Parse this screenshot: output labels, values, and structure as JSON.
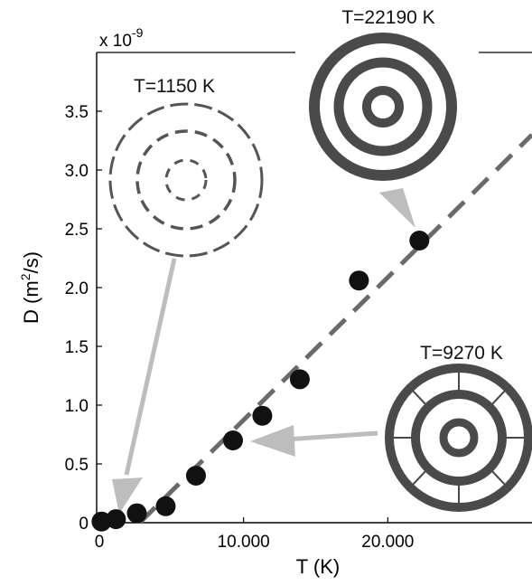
{
  "chart_data": {
    "type": "scatter",
    "xlabel": "T (K)",
    "ylabel_main": "D (m",
    "ylabel_sup": "2",
    "ylabel_tail": "/s)",
    "xlim": [
      0,
      30000
    ],
    "ylim": [
      0,
      4.0
    ],
    "x_ticks": [
      0,
      10000,
      20000
    ],
    "x_tick_labels": [
      "0",
      "10.000",
      "20.000"
    ],
    "y_ticks": [
      0,
      0.5,
      1.0,
      1.5,
      2.0,
      2.5,
      3.0,
      3.5
    ],
    "y_tick_labels": [
      "0",
      "0.5",
      "1.0",
      "1.5",
      "2.0",
      "2.5",
      "3.0",
      "3.5"
    ],
    "y_scale_base": "x 10",
    "y_scale_exp": "-9",
    "points": [
      {
        "x": 150,
        "y": 0.01
      },
      {
        "x": 1150,
        "y": 0.03
      },
      {
        "x": 2600,
        "y": 0.08
      },
      {
        "x": 4600,
        "y": 0.14
      },
      {
        "x": 6700,
        "y": 0.4
      },
      {
        "x": 9270,
        "y": 0.7
      },
      {
        "x": 11300,
        "y": 0.91
      },
      {
        "x": 13900,
        "y": 1.22
      },
      {
        "x": 18000,
        "y": 2.06
      },
      {
        "x": 22190,
        "y": 2.4
      }
    ],
    "fit_line": {
      "x0": 2800,
      "y0": 0.0,
      "x1": 30000,
      "y1": 3.3
    },
    "annotations": [
      {
        "text": "T=1150 K"
      },
      {
        "text": "T=22190 K"
      },
      {
        "text": "T=9270 K"
      }
    ],
    "colors": {
      "points": "#111111",
      "fit_line": "#6a6a6a",
      "arrows": "#bdbdbd",
      "rings": "#4a4a4a"
    },
    "grid": false
  }
}
